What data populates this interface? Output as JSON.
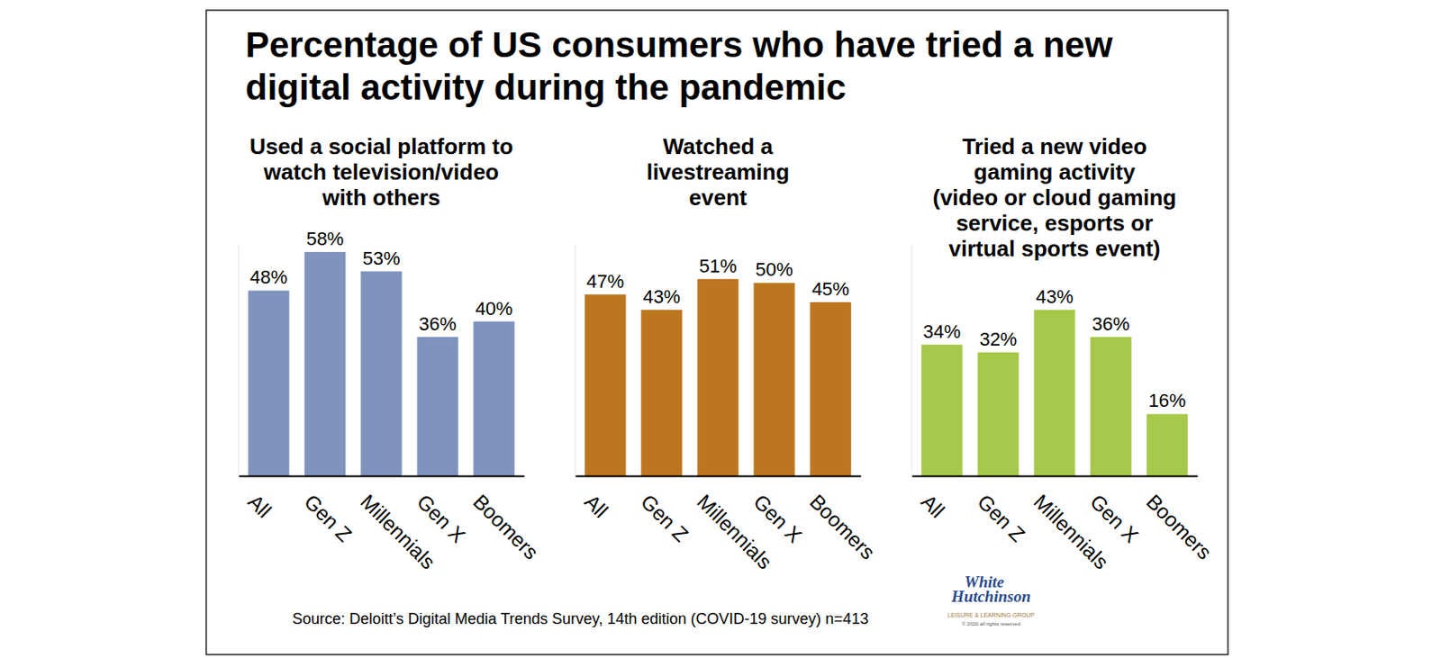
{
  "title": [
    "Percentage of US consumers who have tried a new",
    "digital activity during the pandemic"
  ],
  "source": "Source: Deloitt’s Digital Media Trends Survey, 14th edition (COVID-19 survey) n=413",
  "logo": {
    "name": [
      "White",
      "Hutchinson"
    ],
    "tagline": "LEISURE & LEARNING GROUP",
    "copyright": "© 2020 all rights reserved"
  },
  "chart_data": [
    {
      "type": "bar",
      "title": [
        "Used a social platform to",
        "watch television/video",
        "with others"
      ],
      "categories": [
        "All",
        "Gen Z",
        "Millennials",
        "Gen X",
        "Boomers"
      ],
      "values": [
        48,
        58,
        53,
        36,
        40
      ],
      "value_labels": [
        "48%",
        "58%",
        "53%",
        "36%",
        "40%"
      ],
      "color": "#7f93bd",
      "ylim": [
        0,
        60
      ],
      "data_labels": true,
      "tick_labels": "x"
    },
    {
      "type": "bar",
      "title": [
        "Watched a",
        "livestreaming",
        "event"
      ],
      "categories": [
        "All",
        "Gen Z",
        "Millennials",
        "Gen X",
        "Boomers"
      ],
      "values": [
        47,
        43,
        51,
        50,
        45
      ],
      "value_labels": [
        "47%",
        "43%",
        "51%",
        "50%",
        "45%"
      ],
      "color": "#bd7620",
      "ylim": [
        0,
        60
      ],
      "data_labels": true,
      "tick_labels": "x"
    },
    {
      "type": "bar",
      "title": [
        "Tried a new video",
        "gaming activity",
        "(video or cloud gaming",
        "service, esports or",
        "virtual sports event)"
      ],
      "categories": [
        "All",
        "Gen Z",
        "Millennials",
        "Gen X",
        "Boomers"
      ],
      "values": [
        34,
        32,
        43,
        36,
        16
      ],
      "value_labels": [
        "34%",
        "32%",
        "43%",
        "36%",
        "16%"
      ],
      "color": "#a6c84b",
      "ylim": [
        0,
        60
      ],
      "data_labels": true,
      "tick_labels": "x"
    }
  ]
}
